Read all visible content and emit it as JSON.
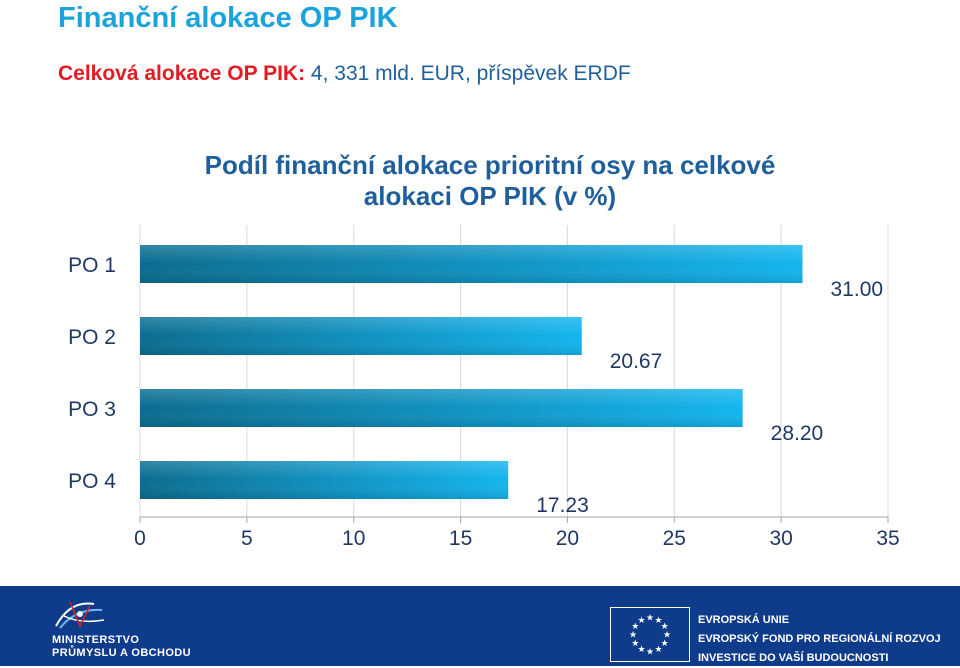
{
  "slide": {
    "title": "Finanční alokace OP PIK",
    "subtitle_lead": "Celková alokace OP PIK:",
    "subtitle_rest": " 4, 331 mld. EUR, příspěvek ERDF"
  },
  "chart_data": {
    "type": "bar",
    "orientation": "horizontal",
    "title_line1": "Podíl finanční alokace prioritní osy na celkové",
    "title_line2": "alokaci OP PIK (v %)",
    "categories": [
      "PO 1",
      "PO 2",
      "PO 3",
      "PO 4"
    ],
    "values": [
      31.0,
      20.67,
      28.2,
      17.23
    ],
    "value_labels": [
      "31.00",
      "20.67",
      "28.20",
      "17.23"
    ],
    "xlim": [
      0,
      35
    ],
    "x_ticks": [
      "0",
      "5",
      "10",
      "15",
      "20",
      "25",
      "30",
      "35"
    ],
    "grid": true,
    "colors": {
      "bar_start": "#0a6c8f",
      "bar_end": "#13b5ef"
    }
  },
  "footer": {
    "ministry_line1": "MINISTERSTVO",
    "ministry_line2": "PRŮMYSLU A OBCHODU",
    "eu_line1": "EVROPSKÁ UNIE",
    "eu_line2": "EVROPSKÝ FOND PRO REGIONÁLNÍ ROZVOJ",
    "eu_line3": "INVESTICE DO VAŠÍ BUDOUCNOSTI",
    "colors": {
      "background": "#0f3c8a",
      "eu_star": "#ffffff"
    }
  }
}
